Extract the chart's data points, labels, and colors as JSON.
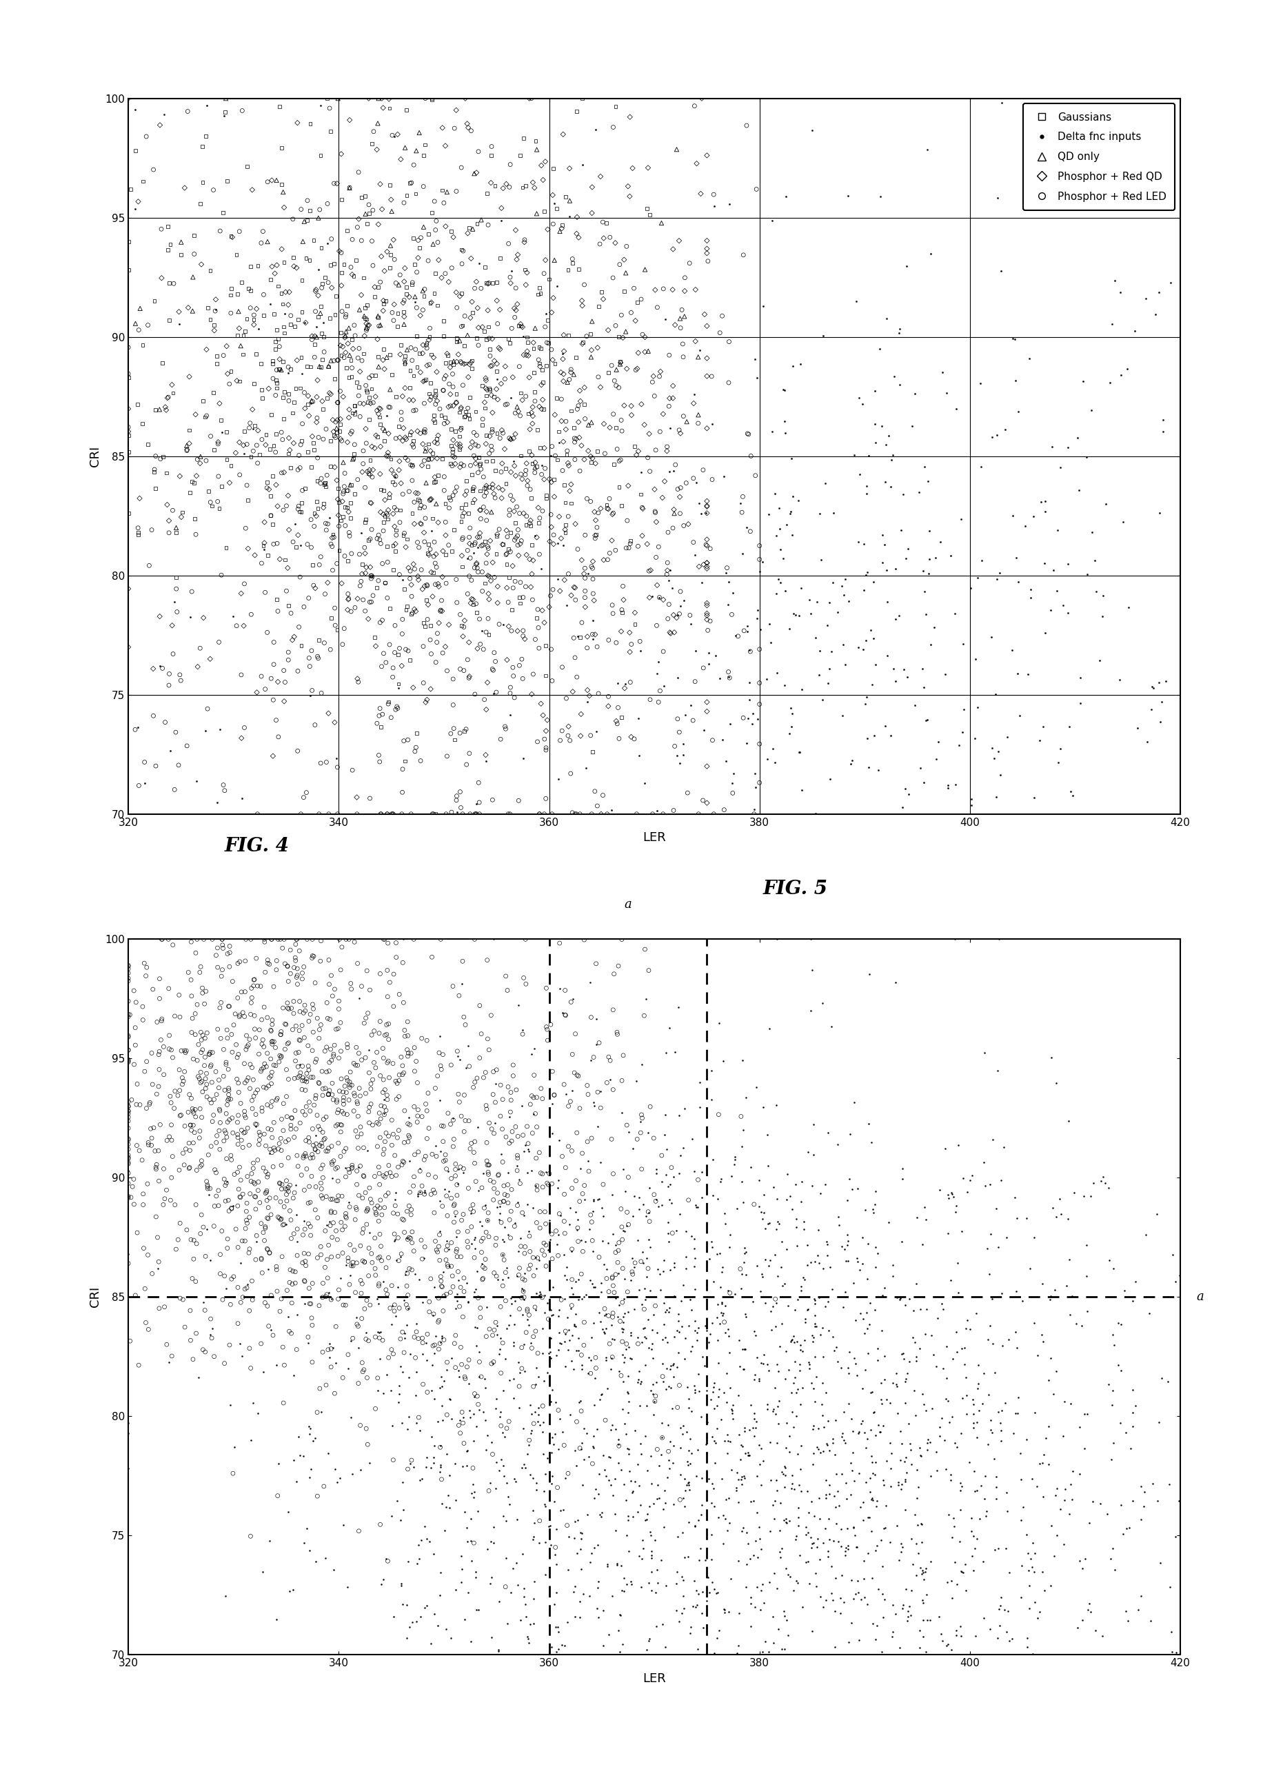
{
  "fig4": {
    "title": "FIG. 4",
    "xlabel": "LER",
    "ylabel": "CRI",
    "xlim": [
      320,
      420
    ],
    "ylim": [
      70,
      100
    ],
    "xticks": [
      320,
      340,
      360,
      380,
      400,
      420
    ],
    "yticks": [
      70,
      75,
      80,
      85,
      90,
      95,
      100
    ],
    "grid_lines_h": [
      75,
      80,
      85,
      90,
      95
    ],
    "grid_lines_v": [
      340,
      360,
      380,
      400
    ],
    "legend_labels": [
      "Gaussians",
      "Delta fnc inputs",
      "QD only",
      "Phosphor + Red QD",
      "Phosphor + Red LED"
    ]
  },
  "fig5": {
    "title": "FIG. 5",
    "xlabel": "LER",
    "ylabel": "CRI",
    "xlim": [
      320,
      420
    ],
    "ylim": [
      70,
      100
    ],
    "xticks": [
      320,
      340,
      360,
      380,
      400,
      420
    ],
    "yticks": [
      70,
      75,
      80,
      85,
      90,
      95,
      100
    ],
    "dashed_vline_x1": 360,
    "dashed_vline_x2": 375,
    "dashed_hline_y": 85,
    "label_a": "a"
  },
  "fig_width": 18.61,
  "fig_height": 25.95
}
